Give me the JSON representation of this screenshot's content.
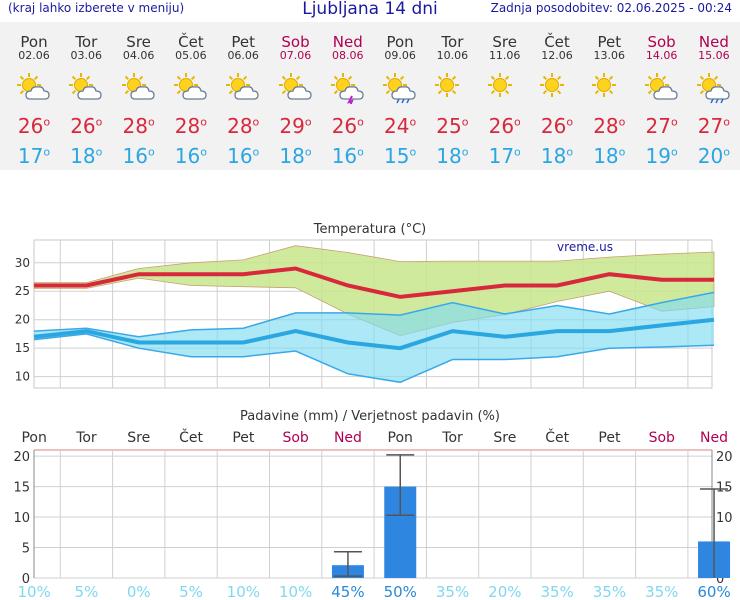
{
  "header": {
    "menu_hint": "(kraj lahko izberete v meniju)",
    "title": "Ljubljana 14 dni",
    "last_update": "Zadnja posodobitev: 02.06.2025 - 00:24"
  },
  "days": [
    {
      "name": "Pon",
      "date": "02.06",
      "weekend": false,
      "icon": "partly-cloudy-icon",
      "tmax": "26",
      "tmin": "17"
    },
    {
      "name": "Tor",
      "date": "03.06",
      "weekend": false,
      "icon": "partly-cloudy-icon",
      "tmax": "26",
      "tmin": "18"
    },
    {
      "name": "Sre",
      "date": "04.06",
      "weekend": false,
      "icon": "partly-cloudy-icon",
      "tmax": "28",
      "tmin": "16"
    },
    {
      "name": "Čet",
      "date": "05.06",
      "weekend": false,
      "icon": "partly-cloudy-icon",
      "tmax": "28",
      "tmin": "16"
    },
    {
      "name": "Pet",
      "date": "06.06",
      "weekend": false,
      "icon": "partly-cloudy-icon",
      "tmax": "28",
      "tmin": "16"
    },
    {
      "name": "Sob",
      "date": "07.06",
      "weekend": true,
      "icon": "partly-cloudy-icon",
      "tmax": "29",
      "tmin": "18"
    },
    {
      "name": "Ned",
      "date": "08.06",
      "weekend": true,
      "icon": "thunderstorm-icon",
      "tmax": "26",
      "tmin": "16"
    },
    {
      "name": "Pon",
      "date": "09.06",
      "weekend": false,
      "icon": "rain-icon",
      "tmax": "24",
      "tmin": "15"
    },
    {
      "name": "Tor",
      "date": "10.06",
      "weekend": false,
      "icon": "sunny-icon",
      "tmax": "25",
      "tmin": "18"
    },
    {
      "name": "Sre",
      "date": "11.06",
      "weekend": false,
      "icon": "sunny-icon",
      "tmax": "26",
      "tmin": "17"
    },
    {
      "name": "Čet",
      "date": "12.06",
      "weekend": false,
      "icon": "sunny-icon",
      "tmax": "26",
      "tmin": "18"
    },
    {
      "name": "Pet",
      "date": "13.06",
      "weekend": false,
      "icon": "sunny-icon",
      "tmax": "28",
      "tmin": "18"
    },
    {
      "name": "Sob",
      "date": "14.06",
      "weekend": true,
      "icon": "partly-cloudy-icon",
      "tmax": "27",
      "tmin": "19"
    },
    {
      "name": "Ned",
      "date": "15.06",
      "weekend": true,
      "icon": "rain-icon",
      "tmax": "27",
      "tmin": "20"
    }
  ],
  "colors": {
    "max_line": "#d8283c",
    "min_line": "#2aa6e0",
    "weekend": "#b00050",
    "precip_bar": "#2f86e0",
    "low_prob": "#80d8f0",
    "high_prob": "#2a8ad8"
  },
  "chart_data": [
    {
      "type": "line",
      "title": "Temperatura (°C)",
      "watermark": "vreme.us",
      "ylim": [
        8,
        34
      ],
      "yticks": [
        10,
        15,
        20,
        25,
        30
      ],
      "x": [
        "Pon",
        "Tor",
        "Sre",
        "Čet",
        "Pet",
        "Sob",
        "Ned",
        "Pon",
        "Tor",
        "Sre",
        "Čet",
        "Pet",
        "Sob",
        "Ned"
      ],
      "series": [
        {
          "name": "max",
          "values": [
            26,
            26,
            28,
            28,
            28,
            29,
            26,
            24,
            25,
            26,
            26,
            28,
            27,
            27
          ],
          "band_low": [
            25.5,
            25.5,
            27.3,
            26,
            25.8,
            25.6,
            21,
            17.2,
            19.5,
            20.9,
            23.2,
            25,
            21.5,
            22.3
          ],
          "band_high": [
            26.5,
            26.5,
            29,
            30,
            30.5,
            33,
            31.8,
            30.2,
            30.3,
            30.3,
            30.3,
            31,
            31.5,
            31.9
          ]
        },
        {
          "name": "min",
          "values": [
            17,
            18,
            16,
            16,
            16,
            18,
            16,
            15,
            18,
            17,
            18,
            18,
            19,
            20
          ],
          "band_low": [
            16.5,
            17.5,
            15,
            13.5,
            13.5,
            14.5,
            10.5,
            9,
            13,
            13,
            13.5,
            15,
            15.2,
            15.5
          ],
          "band_high": [
            18,
            18.5,
            17,
            18.2,
            18.5,
            21.2,
            21.2,
            20.8,
            23,
            21,
            22.5,
            21,
            23,
            24.8
          ]
        }
      ]
    },
    {
      "type": "bar",
      "title": "Padavine (mm) / Verjetnost padavin (%)",
      "ylim": [
        0,
        21
      ],
      "yticks": [
        0,
        5,
        10,
        15,
        20
      ],
      "categories": [
        "Pon",
        "Tor",
        "Sre",
        "Čet",
        "Pet",
        "Sob",
        "Ned",
        "Pon",
        "Tor",
        "Sre",
        "Čet",
        "Pet",
        "Sob",
        "Ned"
      ],
      "values": [
        0,
        0,
        0,
        0,
        0,
        0,
        2.1,
        15,
        0,
        0,
        0,
        0,
        0,
        6
      ],
      "error_low": [
        null,
        null,
        null,
        null,
        null,
        null,
        0.3,
        10.3,
        null,
        null,
        null,
        null,
        null,
        null
      ],
      "error_high": [
        null,
        null,
        null,
        null,
        null,
        null,
        4.3,
        20.2,
        null,
        null,
        null,
        null,
        null,
        14.6
      ],
      "probability": [
        "10%",
        "5%",
        "0%",
        "5%",
        "10%",
        "10%",
        "45%",
        "50%",
        "35%",
        "20%",
        "35%",
        "35%",
        "35%",
        "60%"
      ]
    }
  ]
}
